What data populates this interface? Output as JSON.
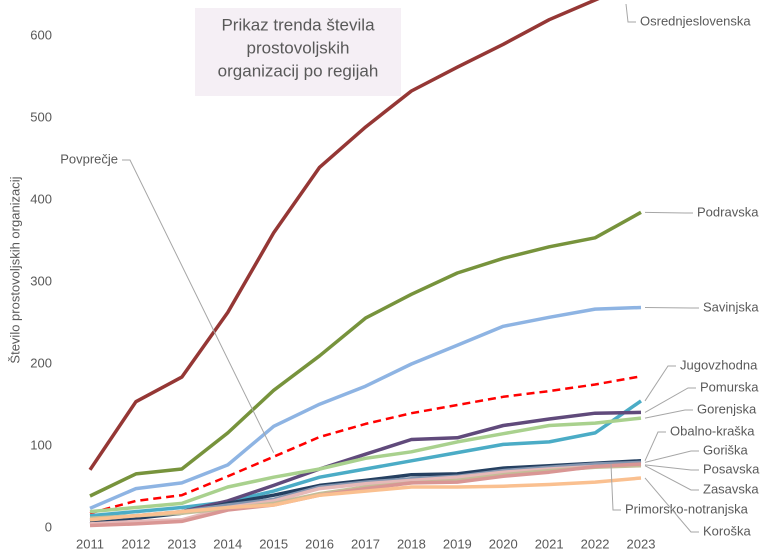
{
  "chart_data": {
    "type": "line",
    "title": "Prikaz trenda števila prostovoljskih organizacij po regijah",
    "title_lines": [
      "Prikaz trenda števila",
      "prostovoljskih",
      "organizacij po regijah"
    ],
    "y_label": "Število prostovoljskih organizacij",
    "categories": [
      "2011",
      "2012",
      "2013",
      "2014",
      "2015",
      "2016",
      "2017",
      "2018",
      "2019",
      "2020",
      "2021",
      "2022",
      "2023"
    ],
    "ylim": [
      0,
      644
    ],
    "yticks": [
      0,
      100,
      200,
      300,
      400,
      500,
      600
    ],
    "grid": false,
    "series": [
      {
        "name": "Osrednjeslovenska",
        "color": "#953735",
        "values": [
          71,
          154,
          184,
          263,
          360,
          440,
          489,
          533,
          562,
          590,
          620,
          644,
          668
        ]
      },
      {
        "name": "Podravska",
        "color": "#77933c",
        "values": [
          39,
          66,
          72,
          116,
          168,
          210,
          256,
          285,
          311,
          329,
          343,
          354,
          385
        ]
      },
      {
        "name": "Savinjska",
        "color": "#8eb4e3",
        "values": [
          24,
          48,
          55,
          77,
          124,
          151,
          173,
          200,
          223,
          246,
          257,
          267,
          269
        ]
      },
      {
        "name": "Povprečje",
        "color": "#ff0000",
        "dashed": true,
        "values": [
          18,
          33,
          40,
          63,
          87,
          111,
          127,
          140,
          150,
          160,
          167,
          175,
          185
        ]
      },
      {
        "name": "Jugovzhodna",
        "color": "#4bacc6",
        "values": [
          15,
          20,
          25,
          32,
          45,
          62,
          72,
          82,
          92,
          102,
          105,
          116,
          155
        ]
      },
      {
        "name": "Pomurska",
        "color": "#604a7b",
        "values": [
          5,
          12,
          20,
          33,
          52,
          72,
          90,
          108,
          110,
          125,
          133,
          140,
          141
        ]
      },
      {
        "name": "Gorenjska",
        "color": "#a9d18e",
        "values": [
          20,
          25,
          30,
          50,
          62,
          72,
          85,
          93,
          105,
          115,
          125,
          128,
          134
        ]
      },
      {
        "name": "Obalno-kraška",
        "color": "#254061",
        "values": [
          8,
          12,
          18,
          30,
          40,
          52,
          58,
          65,
          66,
          73,
          76,
          79,
          82
        ]
      },
      {
        "name": "Goriška",
        "color": "#8496b0",
        "values": [
          10,
          15,
          20,
          28,
          35,
          50,
          56,
          60,
          63,
          70,
          74,
          78,
          80
        ]
      },
      {
        "name": "Posavska",
        "color": "#e6b9b8",
        "values": [
          5,
          8,
          10,
          25,
          33,
          48,
          54,
          58,
          62,
          68,
          72,
          75,
          77
        ]
      },
      {
        "name": "Zasavska",
        "color": "#c4bd97",
        "values": [
          12,
          15,
          18,
          24,
          30,
          42,
          50,
          55,
          58,
          65,
          70,
          74,
          76
        ]
      },
      {
        "name": "Primorsko-notranjska",
        "color": "#d99694",
        "values": [
          3,
          5,
          8,
          22,
          28,
          40,
          48,
          55,
          56,
          63,
          68,
          75,
          78
        ]
      },
      {
        "name": "Koroška",
        "color": "#fac090",
        "values": [
          10,
          15,
          20,
          25,
          28,
          40,
          45,
          50,
          50,
          51,
          53,
          56,
          61
        ]
      }
    ]
  }
}
